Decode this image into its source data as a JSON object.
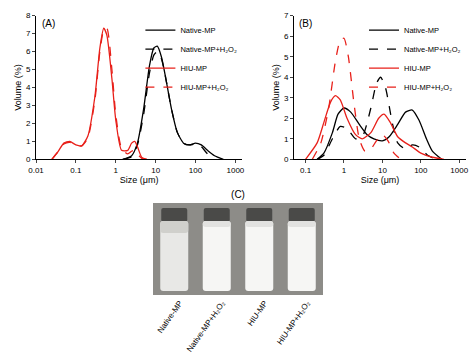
{
  "chart_data": [
    {
      "type": "line",
      "title": "(A)",
      "x_label": "Size (μm)",
      "y_label": "Volume (%)",
      "log": "x",
      "xlim": [
        0.01,
        1500
      ],
      "xticks": [
        0.01,
        0.1,
        1,
        10,
        100,
        1000
      ],
      "ylim": [
        0,
        8
      ],
      "yticks": [
        0,
        1,
        2,
        3,
        4,
        5,
        6,
        7,
        8
      ],
      "grid": false,
      "legend": "upper right",
      "series": [
        {
          "name": "Native-MP",
          "color": "#000000",
          "line_style": "solid",
          "x": [
            1.5,
            2.5,
            3.5,
            5,
            7,
            9,
            11,
            14,
            18,
            25,
            35,
            50,
            70,
            100,
            140,
            200,
            300,
            500
          ],
          "values": [
            0,
            0.2,
            0.9,
            2.8,
            5.2,
            6.2,
            6.3,
            5.7,
            4.5,
            2.8,
            1.5,
            0.9,
            0.8,
            0.9,
            0.8,
            0.5,
            0.2,
            0
          ]
        },
        {
          "name": "Native-MP+H₂O₂",
          "color": "#000000",
          "line_style": "dash",
          "x": [
            1.5,
            2.5,
            3.5,
            5,
            7,
            9,
            11,
            14,
            18,
            25,
            35,
            50,
            70,
            100,
            140,
            200,
            300
          ],
          "values": [
            0,
            0.15,
            0.8,
            2.5,
            4.8,
            5.8,
            6.0,
            5.6,
            4.5,
            2.8,
            1.5,
            0.9,
            0.8,
            0.85,
            0.7,
            0.3,
            0
          ]
        },
        {
          "name": "HIU-MP",
          "color": "#e8201a",
          "line_style": "solid",
          "x": [
            0.025,
            0.035,
            0.05,
            0.07,
            0.1,
            0.14,
            0.2,
            0.3,
            0.4,
            0.5,
            0.6,
            0.8,
            1,
            1.4,
            2,
            2.5,
            3,
            3.5,
            4.5,
            6
          ],
          "values": [
            0,
            0.4,
            0.9,
            1.0,
            0.8,
            0.75,
            1.3,
            3.5,
            6.2,
            7.3,
            6.9,
            4.5,
            2.2,
            0.5,
            0.5,
            0.9,
            1.0,
            0.7,
            0.1,
            0
          ]
        },
        {
          "name": "HIU-MP+H₂O₂",
          "color": "#e8201a",
          "line_style": "dash",
          "x": [
            0.025,
            0.035,
            0.05,
            0.07,
            0.1,
            0.14,
            0.2,
            0.3,
            0.4,
            0.5,
            0.6,
            0.8,
            1,
            1.4,
            2,
            2.5,
            3,
            3.5,
            4.5,
            6
          ],
          "values": [
            0,
            0.4,
            0.85,
            0.95,
            0.8,
            0.75,
            1.2,
            3.3,
            6.0,
            7.2,
            7.3,
            5.0,
            2.5,
            0.6,
            0.3,
            0.45,
            0.5,
            0.3,
            0.05,
            0
          ]
        }
      ]
    },
    {
      "type": "line",
      "title": "(B)",
      "x_label": "Size (μm)",
      "y_label": "Volume (%)",
      "log": "x",
      "xlim": [
        0.05,
        1500
      ],
      "xticks": [
        0.1,
        1,
        10,
        100,
        1000
      ],
      "ylim": [
        0,
        7
      ],
      "yticks": [
        0,
        1,
        2,
        3,
        4,
        5,
        6,
        7
      ],
      "grid": false,
      "legend": "upper right",
      "series": [
        {
          "name": "Native-MP",
          "color": "#000000",
          "line_style": "solid",
          "x": [
            0.2,
            0.3,
            0.5,
            0.7,
            1,
            1.5,
            2.5,
            4,
            6,
            10,
            15,
            25,
            40,
            60,
            90,
            140,
            200,
            350
          ],
          "values": [
            0,
            0.3,
            1.3,
            2.2,
            2.5,
            2.3,
            1.7,
            1.2,
            1.0,
            0.9,
            1.1,
            1.7,
            2.3,
            2.4,
            1.9,
            1.0,
            0.4,
            0
          ]
        },
        {
          "name": "Native-MP+H₂O₂",
          "color": "#000000",
          "line_style": "dash",
          "x": [
            0.2,
            0.3,
            0.5,
            0.8,
            1.2,
            2,
            3,
            5,
            7,
            9,
            12,
            18,
            25,
            40,
            60,
            90,
            150,
            250
          ],
          "values": [
            0,
            0.2,
            1.0,
            1.6,
            1.5,
            1.0,
            1.1,
            2.5,
            3.7,
            4.0,
            3.5,
            1.8,
            0.8,
            0.5,
            0.7,
            0.6,
            0.2,
            0
          ]
        },
        {
          "name": "HIU-MP",
          "color": "#e8201a",
          "line_style": "solid",
          "x": [
            0.1,
            0.2,
            0.3,
            0.45,
            0.6,
            0.8,
            1.2,
            2,
            3,
            5,
            8,
            11,
            16,
            25,
            40,
            60,
            100,
            200,
            400
          ],
          "values": [
            0,
            0.8,
            1.8,
            2.8,
            3.1,
            2.9,
            2.0,
            1.2,
            1.0,
            1.3,
            2.0,
            2.2,
            1.8,
            1.1,
            0.8,
            0.6,
            0.3,
            0.1,
            0
          ]
        },
        {
          "name": "HIU-MP+H₂O₂",
          "color": "#e8201a",
          "line_style": "dash",
          "x": [
            0.15,
            0.25,
            0.4,
            0.6,
            0.8,
            1,
            1.3,
            1.8,
            2.5,
            3.5,
            5,
            7,
            10,
            14,
            20,
            30
          ],
          "values": [
            0,
            0.8,
            2.5,
            4.8,
            5.8,
            5.9,
            5.0,
            2.8,
            1.0,
            0.4,
            0.5,
            0.9,
            1.2,
            0.9,
            0.3,
            0
          ]
        }
      ]
    }
  ],
  "photo": {
    "title": "(C)",
    "samples": [
      "Native-MP",
      "Native-MP+H₂O₂",
      "HIU-MP",
      "HIU-MP+H₂O₂"
    ]
  }
}
